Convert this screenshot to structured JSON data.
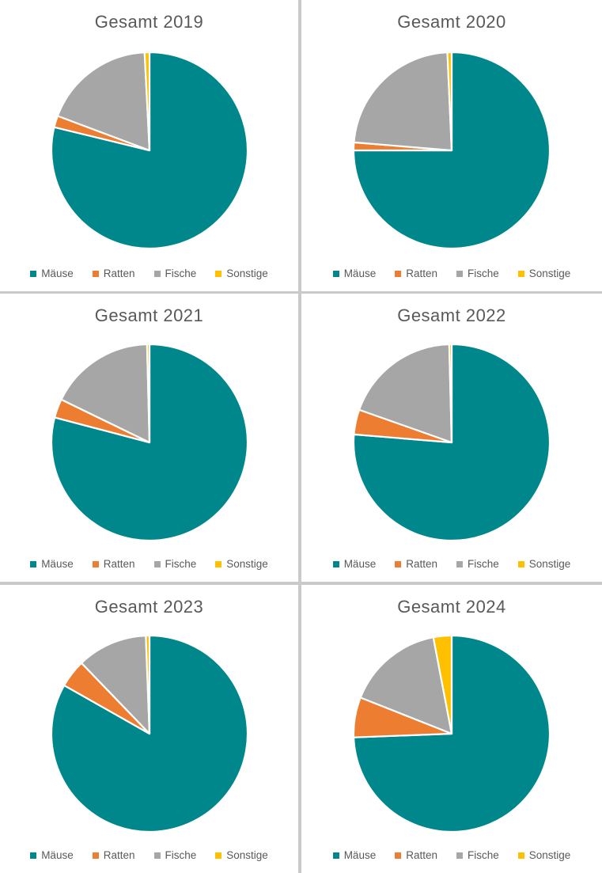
{
  "page": {
    "background": "#ffffff",
    "divider_color": "#cacaca",
    "title_color": "#595959",
    "legend_text_color": "#595959",
    "slice_border_color": "#ffffff"
  },
  "series": {
    "categories": [
      "Mäuse",
      "Ratten",
      "Fische",
      "Sonstige"
    ],
    "colors": [
      "#00878C",
      "#ED7D31",
      "#A6A6A6",
      "#FFC000"
    ]
  },
  "chart_data": [
    {
      "type": "pie",
      "title": "Gesamt 2019",
      "categories": [
        "Mäuse",
        "Ratten",
        "Fische",
        "Sonstige"
      ],
      "values": [
        78.8,
        1.9,
        18.5,
        0.8
      ],
      "units": "percent (estimated from slice angles, no data labels shown)",
      "colors": [
        "#00878C",
        "#ED7D31",
        "#A6A6A6",
        "#FFC000"
      ],
      "start_angle_deg": 0,
      "direction": "clockwise",
      "legend_position": "bottom"
    },
    {
      "type": "pie",
      "title": "Gesamt 2020",
      "categories": [
        "Mäuse",
        "Ratten",
        "Fische",
        "Sonstige"
      ],
      "values": [
        75.0,
        1.3,
        23.0,
        0.7
      ],
      "units": "percent (estimated from slice angles, no data labels shown)",
      "colors": [
        "#00878C",
        "#ED7D31",
        "#A6A6A6",
        "#FFC000"
      ],
      "start_angle_deg": 0,
      "direction": "clockwise",
      "legend_position": "bottom"
    },
    {
      "type": "pie",
      "title": "Gesamt 2021",
      "categories": [
        "Mäuse",
        "Ratten",
        "Fische",
        "Sonstige"
      ],
      "values": [
        79.1,
        3.1,
        17.4,
        0.4
      ],
      "units": "percent (estimated from slice angles, no data labels shown)",
      "colors": [
        "#00878C",
        "#ED7D31",
        "#A6A6A6",
        "#FFC000"
      ],
      "start_angle_deg": 0,
      "direction": "clockwise",
      "legend_position": "bottom"
    },
    {
      "type": "pie",
      "title": "Gesamt 2022",
      "categories": [
        "Mäuse",
        "Ratten",
        "Fische",
        "Sonstige"
      ],
      "values": [
        76.3,
        4.1,
        19.2,
        0.4
      ],
      "units": "percent (estimated from slice angles, no data labels shown)",
      "colors": [
        "#00878C",
        "#ED7D31",
        "#A6A6A6",
        "#FFC000"
      ],
      "start_angle_deg": 0,
      "direction": "clockwise",
      "legend_position": "bottom"
    },
    {
      "type": "pie",
      "title": "Gesamt 2023",
      "categories": [
        "Mäuse",
        "Ratten",
        "Fische",
        "Sonstige"
      ],
      "values": [
        83.2,
        4.6,
        11.6,
        0.6
      ],
      "units": "percent (estimated from slice angles, no data labels shown)",
      "colors": [
        "#00878C",
        "#ED7D31",
        "#A6A6A6",
        "#FFC000"
      ],
      "start_angle_deg": 0,
      "direction": "clockwise",
      "legend_position": "bottom"
    },
    {
      "type": "pie",
      "title": "Gesamt 2024",
      "categories": [
        "Mäuse",
        "Ratten",
        "Fische",
        "Sonstige"
      ],
      "values": [
        74.4,
        6.6,
        16.0,
        3.0
      ],
      "units": "percent (estimated from slice angles, no data labels shown)",
      "colors": [
        "#00878C",
        "#ED7D31",
        "#A6A6A6",
        "#FFC000"
      ],
      "start_angle_deg": 0,
      "direction": "clockwise",
      "legend_position": "bottom"
    }
  ]
}
